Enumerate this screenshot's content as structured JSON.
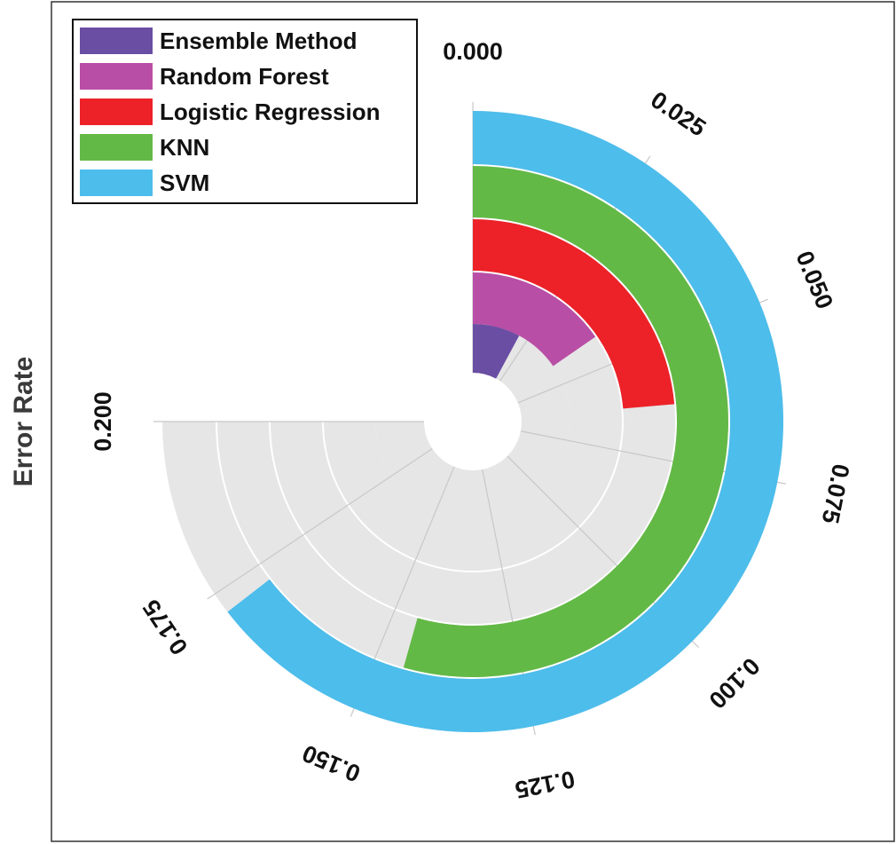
{
  "chart_data": {
    "type": "radial-bar",
    "ylabel": "Error Rate",
    "axis_range": [
      0,
      0.2
    ],
    "axis_span_degrees": 270,
    "ticks": [
      "0.000",
      "0.025",
      "0.050",
      "0.075",
      "0.100",
      "0.125",
      "0.150",
      "0.175",
      "0.200"
    ],
    "tick_values": [
      0,
      0.025,
      0.05,
      0.075,
      0.1,
      0.125,
      0.15,
      0.175,
      0.2
    ],
    "categories": [
      "Ensemble Method",
      "Random Forest",
      "Logistic Regression",
      "KNN",
      "SVM"
    ],
    "values": [
      0.021,
      0.041,
      0.063,
      0.145,
      0.172
    ],
    "colors": [
      "#6a4ea3",
      "#b94ea6",
      "#ec2228",
      "#63b946",
      "#4dbdeb"
    ],
    "track_color": "#e6e6e6",
    "legend_position": "top-left"
  }
}
